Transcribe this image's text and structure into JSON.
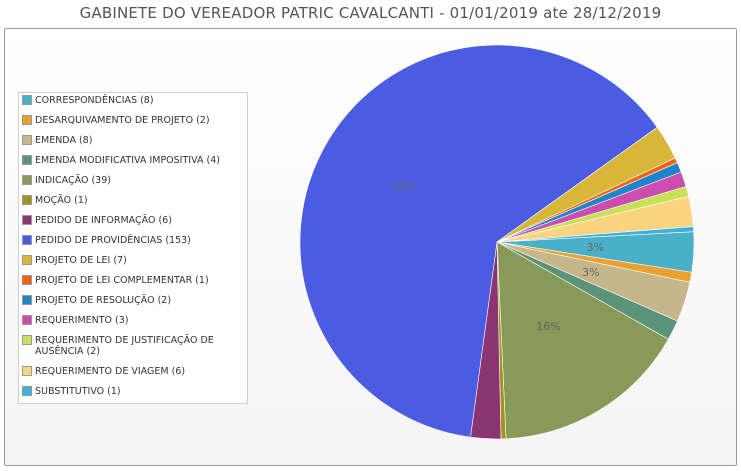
{
  "title": "GABINETE DO VEREADOR PATRIC CAVALCANTI - 01/01/2019 ate 28/12/2019",
  "chart_data": {
    "type": "pie",
    "title": "GABINETE DO VEREADOR PATRIC CAVALCANTI - 01/01/2019 ate 28/12/2019",
    "legend_position": "left",
    "slices": [
      {
        "label": "CORRESPONDÊNCIAS (8)",
        "value": 8,
        "color": "#4AAFC9",
        "pct_label": "3%"
      },
      {
        "label": "DESARQUIVAMENTO DE PROJETO (2)",
        "value": 2,
        "color": "#E8A232",
        "pct_label": ""
      },
      {
        "label": "EMENDA (8)",
        "value": 8,
        "color": "#C6B68A",
        "pct_label": "3%"
      },
      {
        "label": "EMENDA MODIFICATIVA IMPOSITIVA (4)",
        "value": 4,
        "color": "#5A9378",
        "pct_label": ""
      },
      {
        "label": "INDICAÇÃO (39)",
        "value": 39,
        "color": "#879A58",
        "pct_label": "16%"
      },
      {
        "label": "MOÇÃO (1)",
        "value": 1,
        "color": "#A0951F",
        "pct_label": ""
      },
      {
        "label": "PEDIDO DE INFORMAÇÃO (6)",
        "value": 6,
        "color": "#8A3472",
        "pct_label": ""
      },
      {
        "label": "PEDIDO DE PROVIDÊNCIAS (153)",
        "value": 153,
        "color": "#4A5DE2",
        "pct_label": "63%"
      },
      {
        "label": "PROJETO DE LEI (7)",
        "value": 7,
        "color": "#D8B63A",
        "pct_label": ""
      },
      {
        "label": "PROJETO DE LEI COMPLEMENTAR (1)",
        "value": 1,
        "color": "#F0620E",
        "pct_label": ""
      },
      {
        "label": "PROJETO DE RESOLUÇÃO (2)",
        "value": 2,
        "color": "#1F84C9",
        "pct_label": ""
      },
      {
        "label": "REQUERIMENTO (3)",
        "value": 3,
        "color": "#CC4DB0",
        "pct_label": ""
      },
      {
        "label": "REQUERIMENTO DE JUSTIFICAÇÃO DE AUSÊNCIA (2)",
        "value": 2,
        "color": "#C8E055",
        "pct_label": ""
      },
      {
        "label": "REQUERIMENTO DE VIAGEM (6)",
        "value": 6,
        "color": "#FAD47E",
        "pct_label": ""
      },
      {
        "label": "SUBSTITUTIVO (1)",
        "value": 1,
        "color": "#3AB0DA",
        "pct_label": ""
      }
    ]
  }
}
